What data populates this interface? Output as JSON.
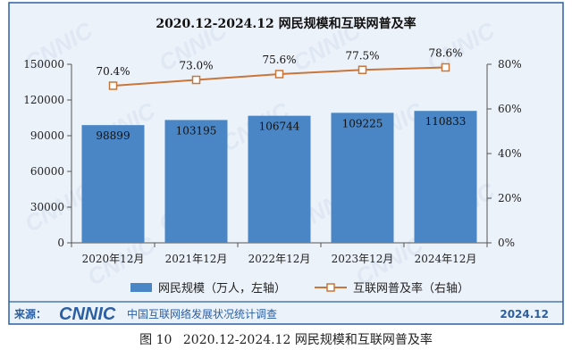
{
  "chart_data": {
    "type": "bar",
    "title": "2020.12-2024.12 网民规模和互联网普及率",
    "categories": [
      "2020年12月",
      "2021年12月",
      "2022年12月",
      "2023年12月",
      "2024年12月"
    ],
    "series": [
      {
        "name": "网民规模（万人，左轴）",
        "type": "bar",
        "axis": "left",
        "values": [
          98899,
          103195,
          106744,
          109225,
          110833
        ],
        "labels": [
          "98899",
          "103195",
          "106744",
          "109225",
          "110833"
        ],
        "color": "#4a86c5"
      },
      {
        "name": "互联网普及率（右轴）",
        "type": "line",
        "axis": "right",
        "values": [
          70.4,
          73.0,
          75.6,
          77.5,
          78.6
        ],
        "labels": [
          "70.4%",
          "73.0%",
          "75.6%",
          "77.5%",
          "78.6%"
        ],
        "color": "#c8763a"
      }
    ],
    "y_left": {
      "lim": [
        0,
        150000
      ],
      "ticks": [
        0,
        30000,
        60000,
        90000,
        120000,
        150000
      ],
      "tick_labels": [
        "0",
        "30000",
        "60000",
        "90000",
        "120000",
        "150000"
      ]
    },
    "y_right": {
      "lim": [
        0,
        80
      ],
      "ticks": [
        0,
        20,
        40,
        60,
        80
      ],
      "tick_labels": [
        "0%",
        "20%",
        "40%",
        "60%",
        "80%"
      ]
    },
    "grid": false,
    "legend_position": "bottom"
  },
  "footer": {
    "source_label": "来源：",
    "logo_text": "CNNIC",
    "org_name": "中国互联网络发展状况统计调查",
    "date": "2024.12"
  },
  "watermark": "CNNIC",
  "caption": {
    "figure_no": "图 10",
    "text": "2020.12-2024.12 网民规模和互联网普及率"
  },
  "colors": {
    "panel_bg": "#ecf2f9",
    "panel_border": "#2b5fa3",
    "bar": "#4a86c5",
    "line": "#c8763a",
    "footer_text": "#2b5fa3",
    "watermark": "#dfe8f3"
  }
}
